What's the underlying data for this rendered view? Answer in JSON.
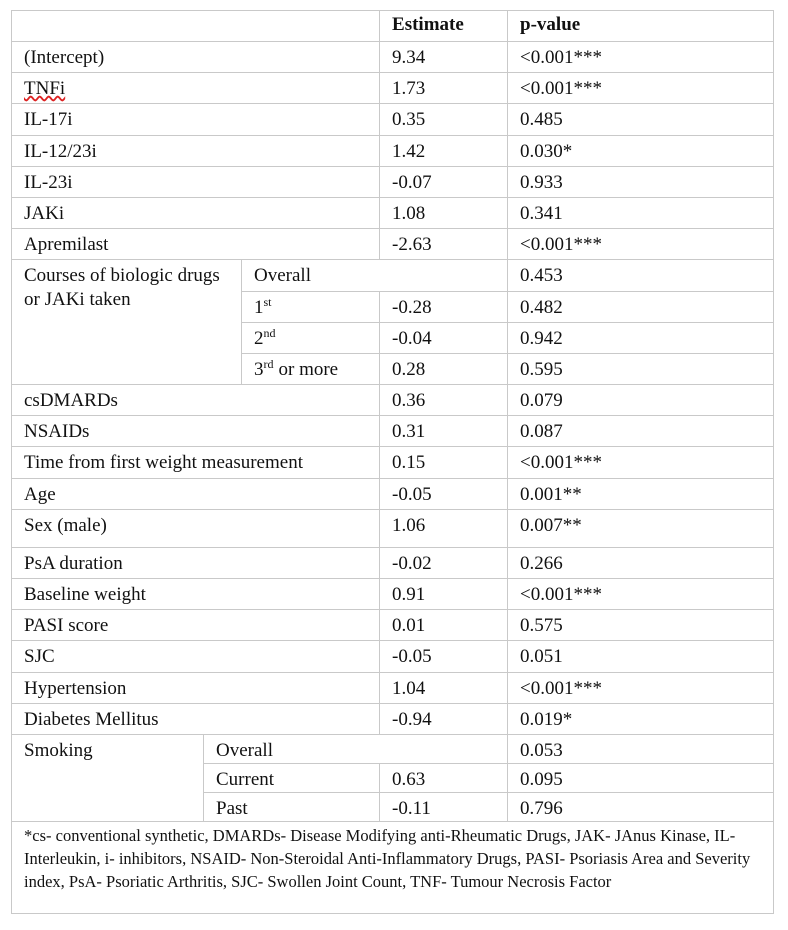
{
  "table": {
    "header": [
      "Estimate",
      "p-value"
    ],
    "rows": [
      {
        "label": "(Intercept)",
        "estimate": "9.34",
        "p_value": "<0.001***"
      },
      {
        "label": "TNFi",
        "estimate": "1.73",
        "p_value": "<0.001***"
      },
      {
        "label": "IL-17i",
        "estimate": "0.35",
        "p_value": "0.485"
      },
      {
        "label": "IL-12/23i",
        "estimate": "1.42",
        "p_value": "0.030*"
      },
      {
        "label": "IL-23i",
        "estimate": "-0.07",
        "p_value": "0.933"
      },
      {
        "label": "JAKi",
        "estimate": "1.08",
        "p_value": "0.341"
      },
      {
        "label": "Apremilast",
        "estimate": "-2.63",
        "p_value": "<0.001***"
      },
      {
        "label": "Courses of biologic drugs or JAKi taken",
        "levels": [
          {
            "label": "Overall",
            "p_value": "0.453"
          },
          {
            "label": "1",
            "sup": "st",
            "estimate": "-0.28",
            "p_value": "0.482"
          },
          {
            "label": "2",
            "sup": "nd",
            "estimate": "-0.04",
            "p_value": "0.942"
          },
          {
            "label": "3",
            "sup": "rd",
            "suffix": "or more",
            "estimate": "0.28",
            "p_value": "0.595"
          }
        ]
      },
      {
        "label": "csDMARDs",
        "estimate": "0.36",
        "p_value": "0.079"
      },
      {
        "label": "NSAIDs",
        "estimate": "0.31",
        "p_value": "0.087"
      },
      {
        "label": "Time from first weight measurement",
        "estimate": "0.15",
        "p_value": "<0.001***"
      },
      {
        "label": "Age",
        "estimate": "-0.05",
        "p_value": "0.001**"
      },
      {
        "label": "Sex (male)",
        "estimate": "1.06",
        "p_value": "0.007**"
      },
      {
        "label": "PsA duration",
        "estimate": "-0.02",
        "p_value": "0.266"
      },
      {
        "label": "Baseline weight",
        "estimate": "0.91",
        "p_value": "<0.001***"
      },
      {
        "label": "PASI score",
        "estimate": "0.01",
        "p_value": "0.575"
      },
      {
        "label": "SJC",
        "estimate": "-0.05",
        "p_value": "0.051"
      },
      {
        "label": "Hypertension",
        "estimate": "1.04",
        "p_value": "<0.001***"
      },
      {
        "label": "Diabetes Mellitus",
        "estimate": "-0.94",
        "p_value": "0.019*"
      },
      {
        "label": "Smoking",
        "levels": [
          {
            "label": "Overall",
            "p_value": "0.053"
          },
          {
            "label": "Current",
            "estimate": "0.63",
            "p_value": "0.095"
          },
          {
            "label": "Past",
            "estimate": "-0.11",
            "p_value": "0.796"
          }
        ]
      }
    ],
    "footnote": "*cs- conventional synthetic, DMARDs- Disease Modifying anti-Rheumatic Drugs, JAK- JAnus Kinase, IL-Interleukin, i- inhibitors, NSAID- Non-Steroidal Anti-Inflammatory Drugs, PASI- Psoriasis Area and Severity index, PsA- Psoriatic Arthritis, SJC- Swollen Joint Count, TNF- Tumour Necrosis Factor"
  }
}
